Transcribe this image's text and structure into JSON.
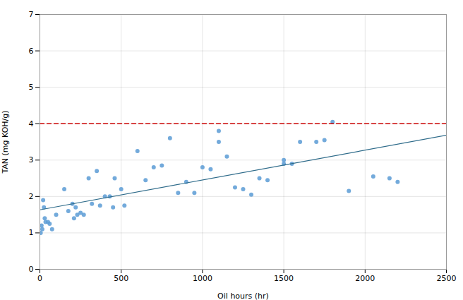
{
  "chart_data": {
    "type": "scatter",
    "xlabel": "Oil hours (hr)",
    "ylabel": "TAN (mg KOH/g)",
    "xlim": [
      0,
      2500
    ],
    "ylim": [
      0,
      7
    ],
    "xticks": [
      0,
      500,
      1000,
      1500,
      2000,
      2500
    ],
    "yticks": [
      0,
      1,
      2,
      3,
      4,
      5,
      6,
      7
    ],
    "grid": true,
    "series": [
      {
        "type": "scatter",
        "color": "#5B9BD5",
        "marker": "circle",
        "x": [
          5,
          10,
          15,
          20,
          25,
          30,
          35,
          50,
          60,
          75,
          100,
          150,
          175,
          200,
          210,
          220,
          230,
          250,
          270,
          300,
          320,
          350,
          370,
          400,
          430,
          450,
          460,
          500,
          520,
          600,
          650,
          700,
          750,
          800,
          850,
          900,
          950,
          1000,
          1050,
          1100,
          1100,
          1150,
          1200,
          1250,
          1300,
          1350,
          1400,
          1500,
          1500,
          1550,
          1600,
          1700,
          1750,
          1800,
          1900,
          2050,
          2150,
          2200
        ],
        "values": [
          1.0,
          1.2,
          1.1,
          1.9,
          1.7,
          1.4,
          1.3,
          1.3,
          1.25,
          1.1,
          1.5,
          2.2,
          1.6,
          1.8,
          1.4,
          1.7,
          1.5,
          1.55,
          1.5,
          2.5,
          1.8,
          2.7,
          1.75,
          2.0,
          2.0,
          1.7,
          2.5,
          2.2,
          1.75,
          3.25,
          2.45,
          2.8,
          2.85,
          3.6,
          2.1,
          2.4,
          2.1,
          2.8,
          2.75,
          3.8,
          3.5,
          3.1,
          2.25,
          2.2,
          2.05,
          2.5,
          2.45,
          2.9,
          3.0,
          2.9,
          3.5,
          3.5,
          3.55,
          4.05,
          2.15,
          2.55,
          2.5,
          2.4
        ]
      },
      {
        "type": "line",
        "color": "#2E6B8A",
        "line_style": "solid",
        "x": [
          0,
          2500
        ],
        "values": [
          1.6343,
          3.6819
        ]
      },
      {
        "type": "line",
        "color": "#CC0000",
        "line_style": "dashed",
        "x": [
          0,
          2500
        ],
        "values": [
          4.0,
          4.0
        ]
      }
    ]
  }
}
